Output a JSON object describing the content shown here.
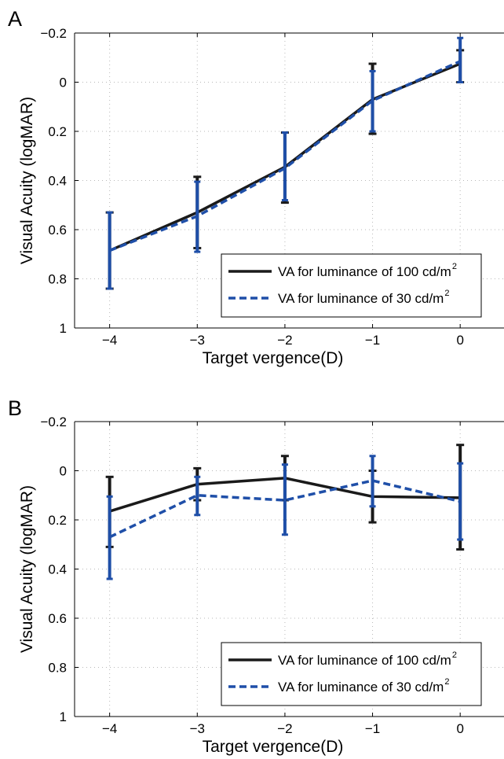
{
  "colors": {
    "series_100": "#1a1a1a",
    "series_30": "#1f4fa8",
    "grid": "#b8b8b8",
    "axis": "#000000"
  },
  "chart_data": [
    {
      "panel": "A",
      "type": "line",
      "xlabel": "Target vergence(D)",
      "ylabel": "Visual Acuity (logMAR)",
      "xlim": [
        -4.4,
        0.5
      ],
      "ylim": [
        -0.2,
        1
      ],
      "y_reversed": true,
      "xticks": [
        -4,
        -3,
        -2,
        -1,
        0
      ],
      "xtick_labels": [
        "−4",
        "−3",
        "−2",
        "−1",
        "0"
      ],
      "yticks": [
        -0.2,
        0,
        0.2,
        0.4,
        0.6,
        0.8,
        1
      ],
      "ytick_labels": [
        "−0.2",
        "0",
        "0.2",
        "0.4",
        "0.6",
        "0.8",
        "1"
      ],
      "grid": true,
      "legend_position": "bottom-right",
      "x": [
        -4,
        -3,
        -2,
        -1,
        0
      ],
      "series": [
        {
          "name": "VA for luminance of 100 cd/m",
          "name_sup": "2",
          "style": "solid",
          "values": [
            0.685,
            0.53,
            0.345,
            0.07,
            -0.075
          ],
          "err_low": [
            0.53,
            0.385,
            0.205,
            -0.075,
            -0.13
          ],
          "err_high": [
            0.84,
            0.675,
            0.49,
            0.21,
            0.0
          ]
        },
        {
          "name": "VA for luminance of 30 cd/m",
          "name_sup": "2",
          "style": "dashed",
          "values": [
            0.685,
            0.545,
            0.35,
            0.075,
            -0.085
          ],
          "err_low": [
            0.53,
            0.405,
            0.205,
            -0.045,
            -0.18
          ],
          "err_high": [
            0.84,
            0.69,
            0.48,
            0.2,
            0.0
          ]
        }
      ]
    },
    {
      "panel": "B",
      "type": "line",
      "xlabel": "Target vergence(D)",
      "ylabel": "Visual Acuity (logMAR)",
      "xlim": [
        -4.4,
        0.5
      ],
      "ylim": [
        -0.2,
        1
      ],
      "y_reversed": true,
      "xticks": [
        -4,
        -3,
        -2,
        -1,
        0
      ],
      "xtick_labels": [
        "−4",
        "−3",
        "−2",
        "−1",
        "0"
      ],
      "yticks": [
        -0.2,
        0,
        0.2,
        0.4,
        0.6,
        0.8,
        1
      ],
      "ytick_labels": [
        "−0.2",
        "0",
        "0.2",
        "0.4",
        "0.6",
        "0.8",
        "1"
      ],
      "grid": true,
      "legend_position": "bottom-right",
      "x": [
        -4,
        -3,
        -2,
        -1,
        0
      ],
      "series": [
        {
          "name": "VA for luminance of 100 cd/m",
          "name_sup": "2",
          "style": "solid",
          "values": [
            0.165,
            0.055,
            0.03,
            0.105,
            0.11
          ],
          "err_low": [
            0.025,
            -0.01,
            -0.06,
            0.0,
            -0.105
          ],
          "err_high": [
            0.31,
            0.12,
            0.12,
            0.21,
            0.32
          ]
        },
        {
          "name": "VA for luminance of 30 cd/m",
          "name_sup": "2",
          "style": "dashed",
          "values": [
            0.27,
            0.1,
            0.12,
            0.04,
            0.125
          ],
          "err_low": [
            0.105,
            0.025,
            -0.025,
            -0.06,
            -0.03
          ],
          "err_high": [
            0.44,
            0.18,
            0.26,
            0.145,
            0.28
          ]
        }
      ]
    }
  ]
}
